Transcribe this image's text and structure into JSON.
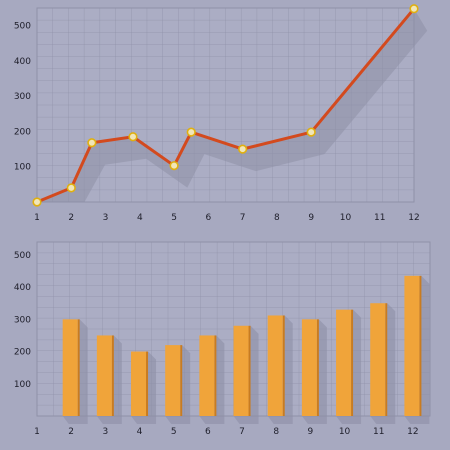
{
  "colors": {
    "background": "#a7a9c0",
    "plot_area": "#abadc4",
    "grid": "#8f91a8",
    "line": "#d34a1e",
    "marker_fill": "#f1e6b8",
    "marker_stroke": "#e0b010",
    "bar": "#f0a43a",
    "bar_side": "#c97c20",
    "shadow": "#8e90a6"
  },
  "chart_data": [
    {
      "type": "line",
      "title": "",
      "xlabel": "",
      "ylabel": "",
      "x": [
        1,
        2,
        2.6,
        3.8,
        5,
        5.5,
        7,
        9,
        12
      ],
      "xticks": [
        "1",
        "2",
        "3",
        "4",
        "5",
        "6",
        "7",
        "8",
        "9",
        "10",
        "11",
        "12"
      ],
      "yticks": [
        "100",
        "200",
        "300",
        "400",
        "500"
      ],
      "xlim": [
        1,
        12
      ],
      "ylim": [
        0,
        550
      ],
      "series": [
        {
          "values": [
            0,
            40,
            168,
            185,
            103,
            198,
            150,
            198,
            548
          ]
        }
      ],
      "grid": true,
      "legend": "none"
    },
    {
      "type": "bar",
      "title": "",
      "xlabel": "",
      "ylabel": "",
      "categories": [
        "1",
        "2",
        "3",
        "4",
        "5",
        "6",
        "7",
        "8",
        "9",
        "10",
        "11",
        "12"
      ],
      "values": [
        0,
        300,
        250,
        200,
        220,
        250,
        280,
        312,
        300,
        330,
        350,
        435
      ],
      "yticks": [
        "100",
        "200",
        "300",
        "400",
        "500"
      ],
      "ylim": [
        0,
        540
      ],
      "grid": true,
      "legend": "none"
    }
  ]
}
